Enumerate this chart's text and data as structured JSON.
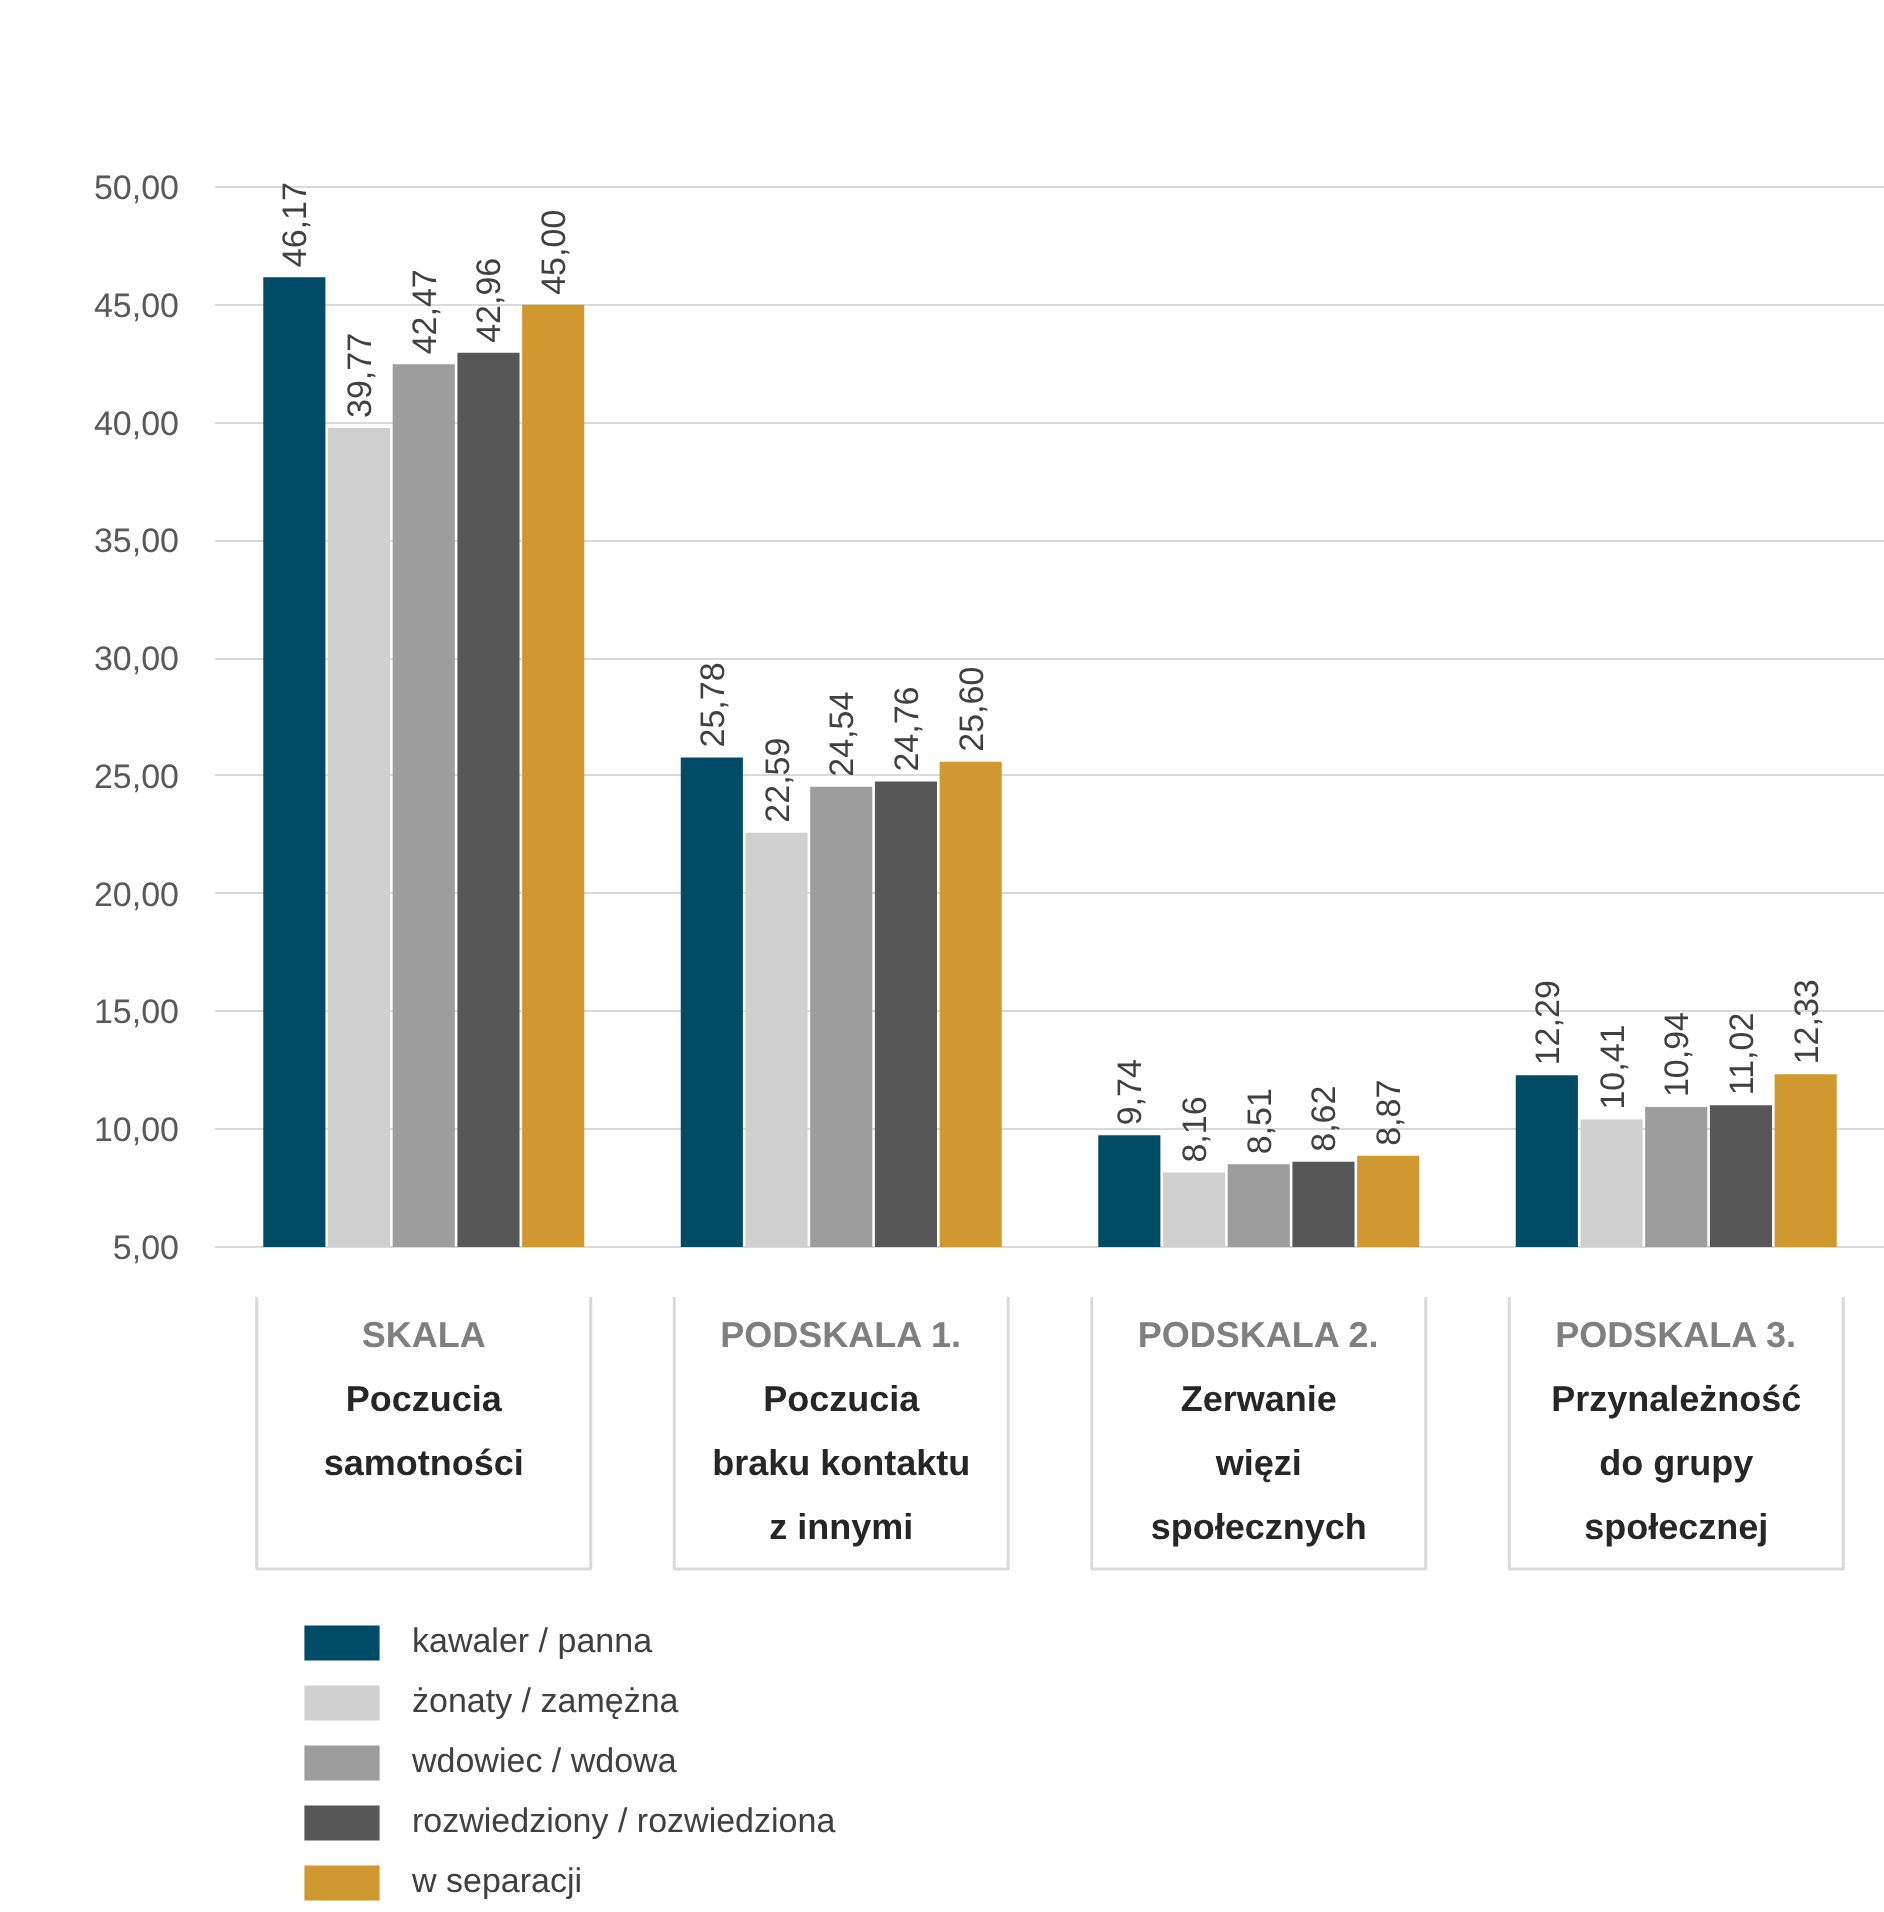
{
  "chart_data": {
    "type": "bar",
    "categories": [
      "SKALA\nPoczucia\nsamotności",
      "PODSKALA 1.\nPoczucia\nbraku kontaktu\nz innymi",
      "PODSKALA 2.\nZerwanie\nwięzi\nspołecznych",
      "PODSKALA 3.\nPrzynależność\ndo grupy\nspołecznej"
    ],
    "series": [
      {
        "name": "kawaler / panna",
        "color": "#004b66",
        "values": [
          46.17,
          25.78,
          9.74,
          12.29
        ],
        "value_labels": [
          "46,17",
          "25,78",
          "9,74",
          "12,29"
        ]
      },
      {
        "name": "żonaty / zamężna",
        "color": "#d0d0d0",
        "values": [
          39.77,
          22.59,
          8.16,
          10.41
        ],
        "value_labels": [
          "39,77",
          "22,59",
          "8,16",
          "10,41"
        ]
      },
      {
        "name": "wdowiec / wdowa",
        "color": "#9d9d9d",
        "values": [
          42.47,
          24.54,
          8.51,
          10.94
        ],
        "value_labels": [
          "42,47",
          "24,54",
          "8,51",
          "10,94"
        ]
      },
      {
        "name": "rozwiedziony / rozwiedziona",
        "color": "#575757",
        "values": [
          42.96,
          24.76,
          8.62,
          11.02
        ],
        "value_labels": [
          "42,96",
          "24,76",
          "8,62",
          "11,02"
        ]
      },
      {
        "name": "w separacji",
        "color": "#d09930",
        "values": [
          45.0,
          25.6,
          8.87,
          12.33
        ],
        "value_labels": [
          "45,00",
          "25,60",
          "8,87",
          "12,33"
        ]
      }
    ],
    "ylim": [
      5,
      50
    ],
    "yticks": [
      {
        "value": 5,
        "label": "5,00"
      },
      {
        "value": 10,
        "label": "10,00"
      },
      {
        "value": 15,
        "label": "15,00"
      },
      {
        "value": 20,
        "label": "20,00"
      },
      {
        "value": 25,
        "label": "25,00"
      },
      {
        "value": 30,
        "label": "30,00"
      },
      {
        "value": 35,
        "label": "35,00"
      },
      {
        "value": 40,
        "label": "40,00"
      },
      {
        "value": 45,
        "label": "45,00"
      },
      {
        "value": 50,
        "label": "50,00"
      }
    ],
    "grid": "y",
    "legend": "bottom left"
  }
}
